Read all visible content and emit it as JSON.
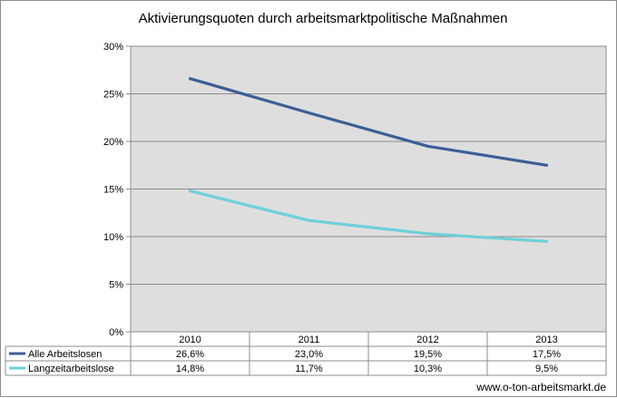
{
  "chart_data": {
    "type": "line",
    "title": "Aktivierungsquoten durch arbeitsmarktpolitische Maßnahmen",
    "categories": [
      "2010",
      "2011",
      "2012",
      "2013"
    ],
    "ylim": [
      0,
      30
    ],
    "yticks": [
      "0%",
      "5%",
      "10%",
      "15%",
      "20%",
      "25%",
      "30%"
    ],
    "grid": true,
    "legend": "data-table",
    "series": [
      {
        "name": "Alle Arbeitslosen",
        "values": [
          26.6,
          23.0,
          19.5,
          17.5
        ],
        "labels": [
          "26,6%",
          "23,0%",
          "19,5%",
          "17,5%"
        ],
        "color": "#3b5f95"
      },
      {
        "name": "Langzeitarbeitslose",
        "values": [
          14.8,
          11.7,
          10.3,
          9.5
        ],
        "labels": [
          "14,8%",
          "11,7%",
          "10,3%",
          "9,5%"
        ],
        "color": "#6cd0d8"
      }
    ]
  },
  "source": "www.o-ton-arbeitsmarkt.de",
  "colors": {
    "plot_background": "#dedede",
    "gridline": "#8c8c8c"
  }
}
